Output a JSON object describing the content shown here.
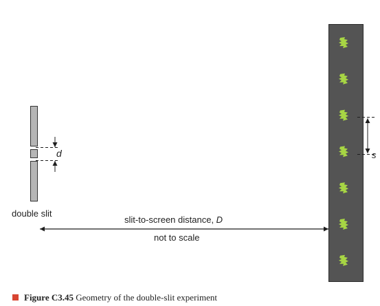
{
  "labels": {
    "double_slit": "double slit",
    "slit_spacing": "d",
    "fringe_spacing": "s",
    "distance_prefix": "slit-to-screen distance, ",
    "distance_symbol": "D",
    "scale_note": "not to scale"
  },
  "caption": {
    "number": "Figure C3.45",
    "text": "Geometry of the double-slit experiment"
  },
  "screen": {
    "fringe_count": 7
  },
  "colors": {
    "slit_fill": "#b6b6b6",
    "screen_fill": "#545454",
    "fringe": "#a7d544",
    "caption_marker": "#d84532",
    "line": "#1e1e1e"
  }
}
